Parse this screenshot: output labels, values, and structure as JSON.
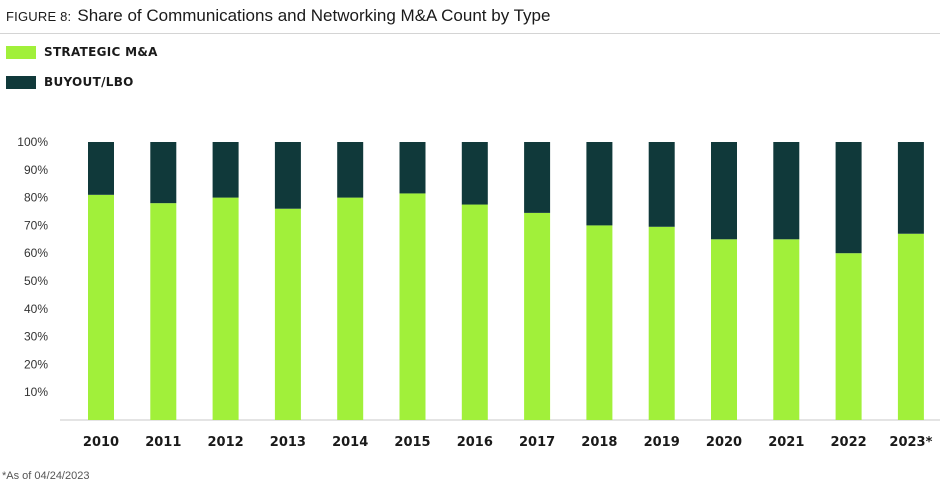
{
  "figure": {
    "label": "FIGURE 8:",
    "title": "Share of Communications and Networking M&A Count by Type"
  },
  "footnote": "*As of 04/24/2023",
  "colors": {
    "strategic": "#a1f03a",
    "buyout": "#10393a"
  },
  "chart_data": {
    "type": "bar",
    "stacked": true,
    "title": "Share of Communications and Networking M&A Count by Type",
    "xlabel": "",
    "ylabel": "",
    "ylim": [
      0,
      100
    ],
    "y_ticks": [
      "10%",
      "20%",
      "30%",
      "40%",
      "50%",
      "60%",
      "70%",
      "80%",
      "90%",
      "100%"
    ],
    "categories": [
      "2010",
      "2011",
      "2012",
      "2013",
      "2014",
      "2015",
      "2016",
      "2017",
      "2018",
      "2019",
      "2020",
      "2021",
      "2022",
      "2023*"
    ],
    "series": [
      {
        "name": "STRATEGIC M&A",
        "color": "#a1f03a",
        "values": [
          81,
          78,
          80,
          76,
          80,
          81.5,
          77.5,
          74.5,
          70,
          69.5,
          65,
          65,
          60,
          67
        ]
      },
      {
        "name": "BUYOUT/LBO",
        "color": "#10393a",
        "values": [
          19,
          22,
          20,
          24,
          20,
          18.5,
          22.5,
          25.5,
          30,
          30.5,
          35,
          35,
          40,
          33
        ]
      }
    ],
    "legend": "top-left",
    "grid": false
  }
}
